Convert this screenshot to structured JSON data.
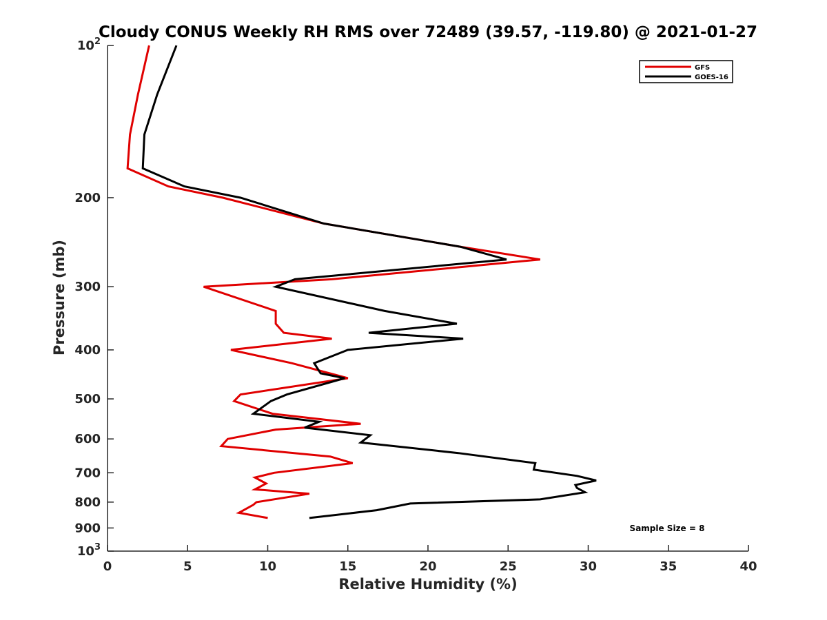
{
  "chart_data": {
    "type": "line",
    "title": "Cloudy CONUS Weekly RH RMS over 72489 (39.57, -119.80) @ 2021-01-27",
    "xlabel": "Relative Humidity (%)",
    "ylabel": "Pressure (mb)",
    "xlim": [
      0,
      40
    ],
    "ylim": [
      100,
      1000
    ],
    "y_scale": "log",
    "y_reversed": true,
    "grid": false,
    "legend_position": "top-right",
    "x_ticks": [
      {
        "value": 0,
        "label": "0"
      },
      {
        "value": 5,
        "label": "5"
      },
      {
        "value": 10,
        "label": "10"
      },
      {
        "value": 15,
        "label": "15"
      },
      {
        "value": 20,
        "label": "20"
      },
      {
        "value": 25,
        "label": "25"
      },
      {
        "value": 30,
        "label": "30"
      },
      {
        "value": 35,
        "label": "35"
      },
      {
        "value": 40,
        "label": "40"
      }
    ],
    "y_ticks": [
      {
        "value": 100,
        "label": "10",
        "exp": "2"
      },
      {
        "value": 200,
        "label": "200"
      },
      {
        "value": 300,
        "label": "300"
      },
      {
        "value": 400,
        "label": "400"
      },
      {
        "value": 500,
        "label": "500"
      },
      {
        "value": 600,
        "label": "600"
      },
      {
        "value": 700,
        "label": "700"
      },
      {
        "value": 800,
        "label": "800"
      },
      {
        "value": 900,
        "label": "900"
      },
      {
        "value": 1000,
        "label": "10",
        "exp": "3"
      }
    ],
    "series": [
      {
        "name": "GFS",
        "color": "#e00000",
        "points": [
          [
            2.6,
            100
          ],
          [
            1.9,
            125
          ],
          [
            1.4,
            150
          ],
          [
            1.25,
            175
          ],
          [
            3.8,
            190
          ],
          [
            7.2,
            200
          ],
          [
            13.5,
            225
          ],
          [
            22.0,
            250
          ],
          [
            27.0,
            265
          ],
          [
            14.0,
            290
          ],
          [
            6.0,
            300
          ],
          [
            10.5,
            335
          ],
          [
            10.5,
            355
          ],
          [
            11.0,
            370
          ],
          [
            14.0,
            380
          ],
          [
            7.7,
            400
          ],
          [
            11.5,
            425
          ],
          [
            15.0,
            455
          ],
          [
            8.3,
            490
          ],
          [
            7.9,
            505
          ],
          [
            10.3,
            535
          ],
          [
            15.8,
            560
          ],
          [
            10.5,
            575
          ],
          [
            7.5,
            600
          ],
          [
            7.1,
            620
          ],
          [
            13.9,
            650
          ],
          [
            15.3,
            670
          ],
          [
            10.4,
            700
          ],
          [
            9.2,
            715
          ],
          [
            9.9,
            735
          ],
          [
            9.2,
            755
          ],
          [
            12.6,
            770
          ],
          [
            9.3,
            800
          ],
          [
            9.1,
            810
          ],
          [
            8.2,
            840
          ],
          [
            10.0,
            860
          ]
        ]
      },
      {
        "name": "GOES-16",
        "color": "#000000",
        "points": [
          [
            4.3,
            100
          ],
          [
            3.1,
            125
          ],
          [
            2.3,
            150
          ],
          [
            2.2,
            175
          ],
          [
            4.8,
            190
          ],
          [
            8.3,
            200
          ],
          [
            13.5,
            225
          ],
          [
            22.0,
            250
          ],
          [
            24.9,
            265
          ],
          [
            11.7,
            290
          ],
          [
            10.5,
            300
          ],
          [
            17.3,
            335
          ],
          [
            21.8,
            355
          ],
          [
            16.3,
            370
          ],
          [
            22.2,
            380
          ],
          [
            15.0,
            400
          ],
          [
            12.9,
            425
          ],
          [
            13.3,
            445
          ],
          [
            14.8,
            455
          ],
          [
            11.2,
            490
          ],
          [
            10.2,
            505
          ],
          [
            9.1,
            535
          ],
          [
            13.2,
            555
          ],
          [
            12.3,
            570
          ],
          [
            16.4,
            590
          ],
          [
            15.8,
            610
          ],
          [
            21.9,
            640
          ],
          [
            26.7,
            670
          ],
          [
            26.6,
            690
          ],
          [
            29.3,
            710
          ],
          [
            30.5,
            725
          ],
          [
            29.2,
            740
          ],
          [
            29.3,
            750
          ],
          [
            29.8,
            765
          ],
          [
            27.0,
            790
          ],
          [
            18.9,
            805
          ],
          [
            16.8,
            830
          ],
          [
            12.6,
            860
          ]
        ]
      }
    ],
    "annotations": [
      {
        "text": "Sample Size = 8",
        "anchor": "lower-right",
        "x_data": 38.5,
        "y_data": 900
      }
    ]
  }
}
